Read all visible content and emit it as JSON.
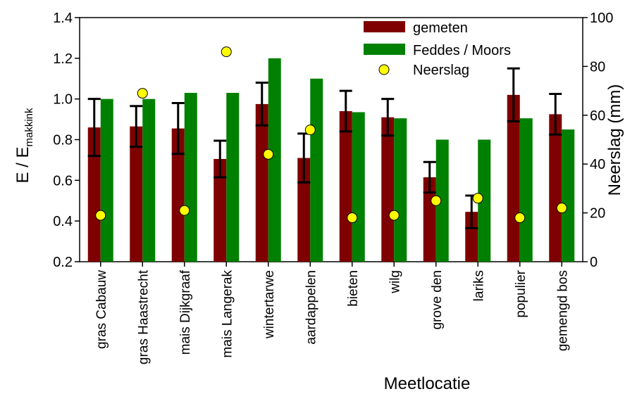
{
  "chart_data": {
    "type": "bar",
    "xlabel": "Meetlocatie",
    "ylabel_main": "E / E",
    "ylabel_sub": "makkink",
    "y2label": "Neerslag (mm)",
    "ylim": [
      0.2,
      1.4
    ],
    "y2lim": [
      0,
      100
    ],
    "yticks": [
      "0.2",
      "0.4",
      "0.6",
      "0.8",
      "1.0",
      "1.2",
      "1.4"
    ],
    "y2ticks": [
      "0",
      "20",
      "40",
      "60",
      "80",
      "100"
    ],
    "categories": [
      "gras Cabauw",
      "gras Haastrecht",
      "mais Dijkgraaf",
      "mais Langerak",
      "wintertarwe",
      "aardappelen",
      "bieten",
      "wilg",
      "grove den",
      "lariks",
      "populier",
      "gemengd bos"
    ],
    "series": [
      {
        "name": "gemeten",
        "color": "#7f0000",
        "values": [
          0.86,
          0.865,
          0.855,
          0.705,
          0.975,
          0.71,
          0.94,
          0.91,
          0.615,
          0.445,
          1.02,
          0.925
        ],
        "errors": [
          0.14,
          0.1,
          0.125,
          0.09,
          0.105,
          0.12,
          0.1,
          0.09,
          0.075,
          0.08,
          0.13,
          0.1
        ]
      },
      {
        "name": "Feddes / Moors",
        "color": "#008000",
        "values": [
          1.0,
          1.0,
          1.03,
          1.03,
          1.2,
          1.1,
          0.935,
          0.905,
          0.8,
          0.8,
          0.905,
          0.85
        ]
      },
      {
        "name": "Neerslag",
        "color": "#ffff00",
        "axis": "right",
        "values": [
          19,
          69,
          21,
          86,
          44,
          54,
          18,
          19,
          25,
          26,
          18,
          22
        ]
      }
    ]
  }
}
